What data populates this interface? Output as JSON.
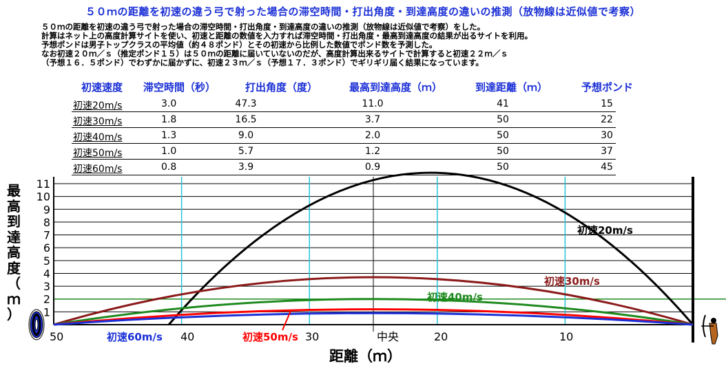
{
  "title": "５０ｍの距離を初速の違う弓で射った場合の滞空時間・打出角度・到達高度の違いの推測（放物線は近似値で考察）",
  "description": [
    "５０ｍの距離を初速の違う弓で射った場合の滞空時間・打出角度・到達高度の違いの推測（放物線は近似値で考察）をした。",
    "計算はネット上の高度計算サイトを使い、初速と距離の数値を入力すれば滞空時間・打出角度・最高到達高度の結果が出るサイトを利用。",
    "予想ポンドは男子トップクラスの平均値（約４８ポンド）とその初速から比例した数値でポンド数を予測した。",
    "なお初速２０ｍ／ｓ（推定ポンド１５）は５０ｍの距離に届いていないのだが、高度計算出来るサイトで計算すると初速２２ｍ／ｓ",
    "（予想１６．５ポンド）でわずかに届かずに、初速２３ｍ／ｓ（予想１７．３ポンド）でギリギリ届く結果になっています。"
  ],
  "table": {
    "headers": [
      "初速速度",
      "滞空時間（秒）",
      "打出角度（度）",
      "最高到達高度（ｍ）",
      "到達距離（ｍ）",
      "予想ポンド"
    ],
    "rows": [
      {
        "name": "初速20m/s",
        "time": "3.0",
        "angle": "47.3",
        "height": "11.0",
        "dist": "41",
        "pound": "15"
      },
      {
        "name": "初速30m/s",
        "time": "1.8",
        "angle": "16.5",
        "height": "3.7",
        "dist": "50",
        "pound": "22"
      },
      {
        "name": "初速40m/s",
        "time": "1.3",
        "angle": "9.0",
        "height": "2.0",
        "dist": "50",
        "pound": "30"
      },
      {
        "name": "初速50m/s",
        "time": "1.0",
        "angle": "5.7",
        "height": "1.2",
        "dist": "50",
        "pound": "37"
      },
      {
        "name": "初速60m/s",
        "time": "0.8",
        "angle": "3.9",
        "height": "0.9",
        "dist": "50",
        "pound": "45"
      }
    ]
  },
  "chart_data": {
    "type": "line",
    "ylabel": "最高到達高度（ｍ）",
    "xlabel": "距離（ｍ）",
    "x_tick_labels": [
      "50",
      "40",
      "30",
      "中央",
      "20",
      "10"
    ],
    "y_ticks": [
      "1",
      "2",
      "3",
      "4",
      "5",
      "6",
      "7",
      "8",
      "9",
      "10",
      "11"
    ],
    "ylim": [
      0,
      11.5
    ],
    "xlim": [
      50,
      0
    ],
    "grid": true,
    "reference_line_y": 2,
    "series": [
      {
        "name": "初速20m/s",
        "color": "#000000",
        "start_x": 41,
        "end_x": 0,
        "peak_x": 15,
        "peak_y": 11.0
      },
      {
        "name": "初速30m/s",
        "color": "#8b1a1a",
        "start_x": 50,
        "end_x": 0,
        "peak_x": 25,
        "peak_y": 3.7
      },
      {
        "name": "初速40m/s",
        "color": "#1e8a1e",
        "start_x": 50,
        "end_x": 0,
        "peak_x": 25,
        "peak_y": 2.0
      },
      {
        "name": "初速50m/s",
        "color": "#ff0000",
        "start_x": 50,
        "end_x": 0,
        "peak_x": 25,
        "peak_y": 1.2
      },
      {
        "name": "初速60m/s",
        "color": "#1a2fd6",
        "start_x": 50,
        "end_x": 0,
        "peak_x": 25,
        "peak_y": 0.9
      }
    ]
  }
}
